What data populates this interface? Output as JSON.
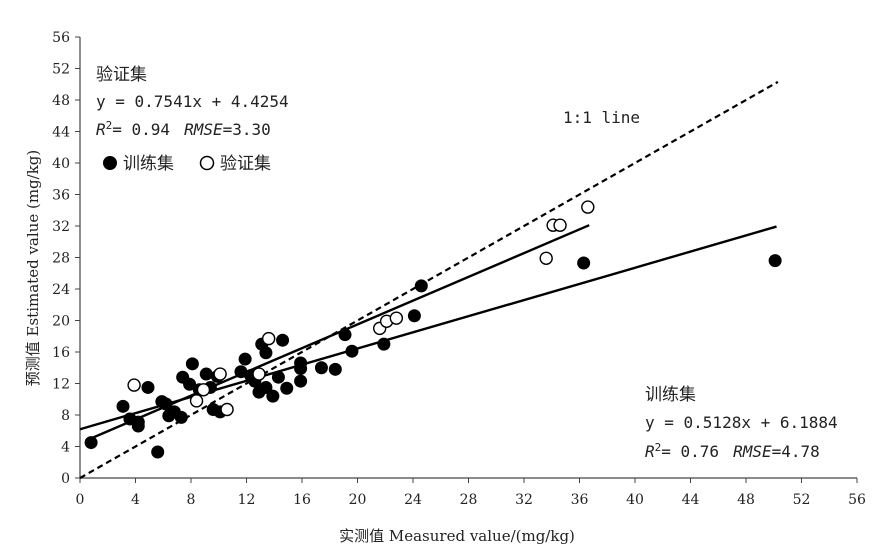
{
  "chart_data": {
    "type": "scatter",
    "xlabel": "实测值 Measured value/(mg/kg)",
    "ylabel": "预测值 Estimated value (mg/kg)",
    "xlim": [
      0,
      56
    ],
    "ylim": [
      0,
      56
    ],
    "x_ticks": [
      "0",
      "4",
      "8",
      "12",
      "16",
      "20",
      "24",
      "28",
      "32",
      "36",
      "40",
      "44",
      "48",
      "52",
      "56"
    ],
    "y_ticks": [
      "0",
      "4",
      "8",
      "12",
      "16",
      "20",
      "24",
      "28",
      "32",
      "36",
      "40",
      "44",
      "48",
      "52",
      "56"
    ],
    "grid": false,
    "legend": {
      "position": "top-left",
      "items": [
        {
          "label": "训练集",
          "marker": "filled-circle"
        },
        {
          "label": "验证集",
          "marker": "open-circle"
        }
      ]
    },
    "series": [
      {
        "name": "训练集",
        "marker": "filled",
        "points": [
          [
            0.8,
            4.5
          ],
          [
            3.1,
            9.1
          ],
          [
            3.6,
            7.5
          ],
          [
            4.2,
            7.1
          ],
          [
            4.2,
            6.6
          ],
          [
            4.9,
            11.5
          ],
          [
            5.6,
            3.3
          ],
          [
            5.9,
            9.7
          ],
          [
            6.2,
            9.4
          ],
          [
            6.4,
            7.9
          ],
          [
            6.8,
            8.4
          ],
          [
            7.3,
            7.7
          ],
          [
            7.4,
            12.8
          ],
          [
            7.9,
            11.9
          ],
          [
            8.1,
            14.5
          ],
          [
            8.6,
            11.2
          ],
          [
            9.1,
            13.2
          ],
          [
            9.4,
            11.5
          ],
          [
            9.9,
            12.9
          ],
          [
            9.6,
            8.7
          ],
          [
            10.1,
            8.4
          ],
          [
            11.6,
            13.5
          ],
          [
            11.9,
            15.1
          ],
          [
            12.3,
            13.0
          ],
          [
            12.6,
            12.3
          ],
          [
            12.9,
            10.9
          ],
          [
            13.1,
            17.0
          ],
          [
            13.4,
            15.9
          ],
          [
            13.4,
            11.5
          ],
          [
            13.9,
            10.4
          ],
          [
            14.3,
            12.8
          ],
          [
            14.6,
            17.5
          ],
          [
            14.9,
            11.4
          ],
          [
            15.9,
            13.9
          ],
          [
            15.9,
            14.6
          ],
          [
            15.9,
            12.3
          ],
          [
            17.4,
            14.0
          ],
          [
            18.4,
            13.8
          ],
          [
            19.1,
            18.2
          ],
          [
            19.6,
            16.1
          ],
          [
            21.9,
            17.0
          ],
          [
            24.1,
            20.6
          ],
          [
            24.6,
            24.4
          ],
          [
            36.3,
            27.3
          ],
          [
            50.1,
            27.6
          ]
        ]
      },
      {
        "name": "验证集",
        "marker": "open",
        "points": [
          [
            3.9,
            11.8
          ],
          [
            8.4,
            9.8
          ],
          [
            8.9,
            11.2
          ],
          [
            10.1,
            13.2
          ],
          [
            10.6,
            8.7
          ],
          [
            12.9,
            13.2
          ],
          [
            13.6,
            17.7
          ],
          [
            21.6,
            19.0
          ],
          [
            22.1,
            19.9
          ],
          [
            22.8,
            20.3
          ],
          [
            33.6,
            27.9
          ],
          [
            34.1,
            32.1
          ],
          [
            34.6,
            32.1
          ],
          [
            36.6,
            34.4
          ]
        ]
      }
    ],
    "lines": [
      {
        "name": "验证集",
        "slope": 0.7541,
        "intercept": 4.4254,
        "x_range": [
          0.4,
          36.7
        ],
        "style": "solid"
      },
      {
        "name": "训练集",
        "slope": 0.5128,
        "intercept": 6.1884,
        "x_range": [
          0,
          50.2
        ],
        "style": "solid"
      },
      {
        "name": "1:1 line",
        "slope": 1,
        "intercept": 0,
        "x_range": [
          0,
          50.3
        ],
        "style": "dashed"
      }
    ],
    "annotations": {
      "validation": {
        "title": "验证集",
        "equation": "y = 0.7541x + 4.4254",
        "r2_label": "R",
        "r2_sup": "2",
        "r2_value": "= 0.94",
        "rmse_label": "RMSE",
        "rmse_value": "=3.30"
      },
      "training": {
        "title": "训练集",
        "equation": "y = 0.5128x + 6.1884",
        "r2_label": "R",
        "r2_sup": "2",
        "r2_value": "= 0.76",
        "rmse_label": "RMSE",
        "rmse_value": "=4.78"
      },
      "one_to_one": "1:1 line"
    }
  }
}
